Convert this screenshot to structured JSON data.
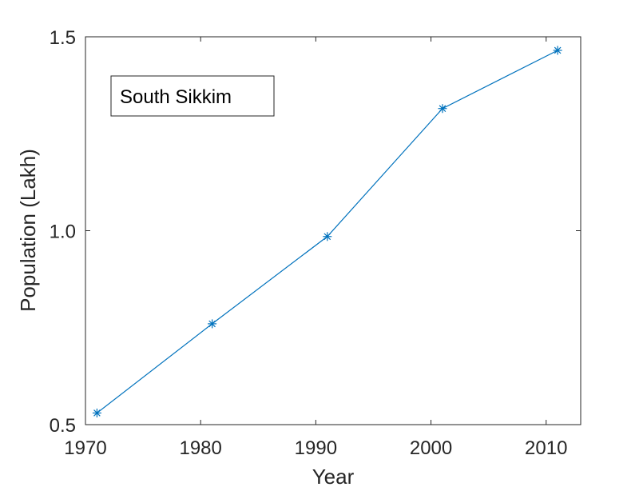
{
  "chart_data": {
    "type": "line",
    "title": "",
    "xlabel": "Year",
    "ylabel": "Population (Lakh)",
    "xlim": [
      1970,
      2013
    ],
    "ylim": [
      0.5,
      1.5
    ],
    "xticks": [
      1970,
      1980,
      1990,
      2000,
      2010
    ],
    "xtick_labels": [
      "1970",
      "1980",
      "1990",
      "2000",
      "2010"
    ],
    "yticks": [
      0.5,
      1.0,
      1.5
    ],
    "ytick_labels": [
      "0.5",
      "1.0",
      "1.5"
    ],
    "grid": false,
    "legend_position": "top-left",
    "series": [
      {
        "name": "South Sikkim",
        "color": "#0072bd",
        "marker": "asterisk",
        "x": [
          1971,
          1981,
          1991,
          2001,
          2011
        ],
        "y": [
          0.53,
          0.76,
          0.985,
          1.315,
          1.465
        ]
      }
    ]
  }
}
